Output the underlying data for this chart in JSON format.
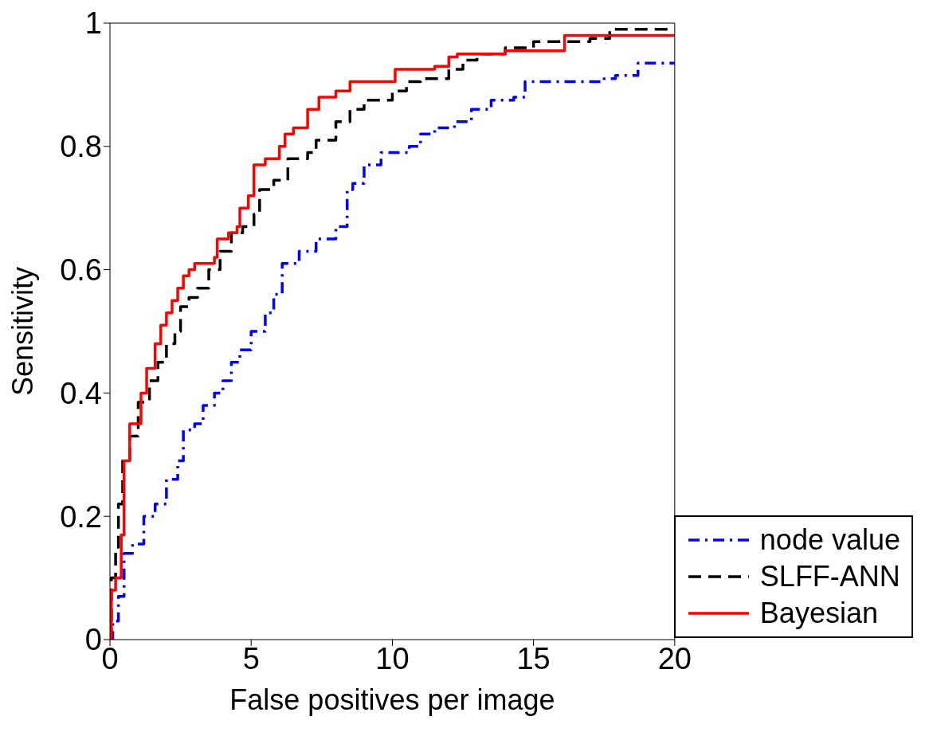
{
  "chart_data": {
    "type": "step",
    "xlabel": "False positives per image",
    "ylabel": "Sensitivity",
    "xlim": [
      0,
      20
    ],
    "xticks": [
      0,
      5,
      10,
      15,
      20
    ],
    "ylim": [
      0,
      1
    ],
    "yticks": [
      0,
      0.2,
      0.4,
      0.6,
      0.8,
      1
    ],
    "grid": false,
    "legend": "bottom right",
    "marker": "none",
    "series": [
      {
        "name": "node value",
        "color": "#0000ff",
        "line_style": "dashdot",
        "x": [
          0,
          0.1,
          0.3,
          0.5,
          0.8,
          1.2,
          1.6,
          2.0,
          2.4,
          2.6,
          3.0,
          3.3,
          3.7,
          4.0,
          4.3,
          4.6,
          5.0,
          5.5,
          5.8,
          6.1,
          6.7,
          7.3,
          8.0,
          8.4,
          8.6,
          9.0,
          9.6,
          10.6,
          11.0,
          11.5,
          12.2,
          12.8,
          13.5,
          14.3,
          14.7,
          17.5,
          17.9,
          18.7,
          20
        ],
        "values": [
          0,
          0.03,
          0.07,
          0.14,
          0.155,
          0.2,
          0.22,
          0.26,
          0.29,
          0.34,
          0.35,
          0.38,
          0.4,
          0.42,
          0.45,
          0.47,
          0.5,
          0.53,
          0.56,
          0.61,
          0.63,
          0.65,
          0.67,
          0.73,
          0.74,
          0.77,
          0.79,
          0.8,
          0.82,
          0.83,
          0.84,
          0.86,
          0.875,
          0.88,
          0.905,
          0.91,
          0.915,
          0.935,
          0.935
        ]
      },
      {
        "name": "SLFF-ANN",
        "color": "#000000",
        "line_style": "dashed",
        "x": [
          0,
          0.05,
          0.2,
          0.3,
          0.45,
          0.7,
          1.0,
          1.4,
          1.7,
          2.0,
          2.3,
          2.5,
          2.8,
          3.1,
          3.5,
          3.9,
          4.3,
          4.7,
          5.1,
          5.3,
          5.8,
          6.3,
          7.0,
          7.3,
          8.0,
          8.5,
          9.0,
          10.0,
          10.5,
          11.0,
          12.0,
          12.5,
          13.0,
          14.0,
          15.0,
          17.0,
          17.7,
          20
        ],
        "values": [
          0,
          0.1,
          0.15,
          0.22,
          0.29,
          0.33,
          0.385,
          0.42,
          0.45,
          0.48,
          0.5,
          0.54,
          0.555,
          0.57,
          0.6,
          0.63,
          0.66,
          0.67,
          0.69,
          0.73,
          0.745,
          0.78,
          0.79,
          0.81,
          0.84,
          0.86,
          0.875,
          0.89,
          0.905,
          0.91,
          0.925,
          0.94,
          0.95,
          0.96,
          0.97,
          0.975,
          0.99,
          0.99
        ]
      },
      {
        "name": "Bayesian",
        "color": "#ff0000",
        "line_style": "solid",
        "x": [
          0,
          0.05,
          0.2,
          0.4,
          0.5,
          0.7,
          1.0,
          1.1,
          1.3,
          1.6,
          1.8,
          2.0,
          2.2,
          2.4,
          2.6,
          2.8,
          3.0,
          3.7,
          3.8,
          4.2,
          4.5,
          4.6,
          4.9,
          5.1,
          5.5,
          6.0,
          6.2,
          6.5,
          7.0,
          7.4,
          8.0,
          8.5,
          10.0,
          10.1,
          11.5,
          12.0,
          12.3,
          14.0,
          16.1,
          20
        ],
        "values": [
          0,
          0.08,
          0.1,
          0.17,
          0.29,
          0.35,
          0.35,
          0.4,
          0.44,
          0.48,
          0.51,
          0.53,
          0.55,
          0.57,
          0.59,
          0.6,
          0.61,
          0.62,
          0.65,
          0.66,
          0.67,
          0.7,
          0.72,
          0.77,
          0.78,
          0.8,
          0.82,
          0.83,
          0.86,
          0.88,
          0.89,
          0.905,
          0.905,
          0.925,
          0.93,
          0.945,
          0.95,
          0.955,
          0.98,
          0.98
        ]
      }
    ]
  }
}
